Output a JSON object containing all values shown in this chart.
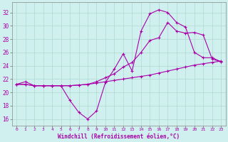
{
  "xlabel": "Windchill (Refroidissement éolien,°C)",
  "xlim": [
    -0.5,
    23.5
  ],
  "ylim": [
    15.0,
    33.5
  ],
  "xticks": [
    0,
    1,
    2,
    3,
    4,
    5,
    6,
    7,
    8,
    9,
    10,
    11,
    12,
    13,
    14,
    15,
    16,
    17,
    18,
    19,
    20,
    21,
    22,
    23
  ],
  "yticks": [
    16,
    18,
    20,
    22,
    24,
    26,
    28,
    30,
    32
  ],
  "bg_color": "#cff0ee",
  "grid_color": "#b0d8d0",
  "line_color": "#aa00aa",
  "line1_x": [
    0,
    1,
    2,
    3,
    4,
    5,
    6,
    7,
    8,
    9,
    10,
    11,
    12,
    13,
    14,
    15,
    16,
    17,
    18,
    19,
    20,
    21,
    22,
    23
  ],
  "line1_y": [
    21.2,
    21.6,
    21.0,
    21.0,
    21.0,
    21.0,
    18.8,
    17.0,
    16.0,
    17.2,
    21.5,
    23.5,
    25.8,
    23.2,
    29.2,
    31.8,
    32.4,
    32.0,
    30.5,
    29.8,
    26.0,
    25.2,
    25.2,
    24.6
  ],
  "line2_x": [
    0,
    1,
    2,
    3,
    4,
    5,
    6,
    7,
    8,
    9,
    10,
    11,
    12,
    13,
    14,
    15,
    16,
    17,
    18,
    19,
    20,
    21,
    22,
    23
  ],
  "line2_y": [
    21.2,
    21.2,
    21.0,
    21.0,
    21.0,
    21.0,
    21.0,
    21.1,
    21.2,
    21.4,
    21.6,
    21.8,
    22.0,
    22.2,
    22.4,
    22.6,
    22.9,
    23.2,
    23.5,
    23.8,
    24.1,
    24.3,
    24.5,
    24.7
  ],
  "line3_x": [
    0,
    1,
    2,
    3,
    4,
    5,
    6,
    7,
    8,
    9,
    10,
    11,
    12,
    13,
    14,
    15,
    16,
    17,
    18,
    19,
    20,
    21,
    22,
    23
  ],
  "line3_y": [
    21.2,
    21.2,
    21.0,
    21.0,
    21.0,
    21.0,
    21.0,
    21.1,
    21.2,
    21.6,
    22.2,
    22.8,
    23.8,
    24.5,
    26.0,
    27.8,
    28.2,
    30.5,
    29.2,
    28.9,
    29.0,
    28.6,
    25.0,
    24.6
  ]
}
